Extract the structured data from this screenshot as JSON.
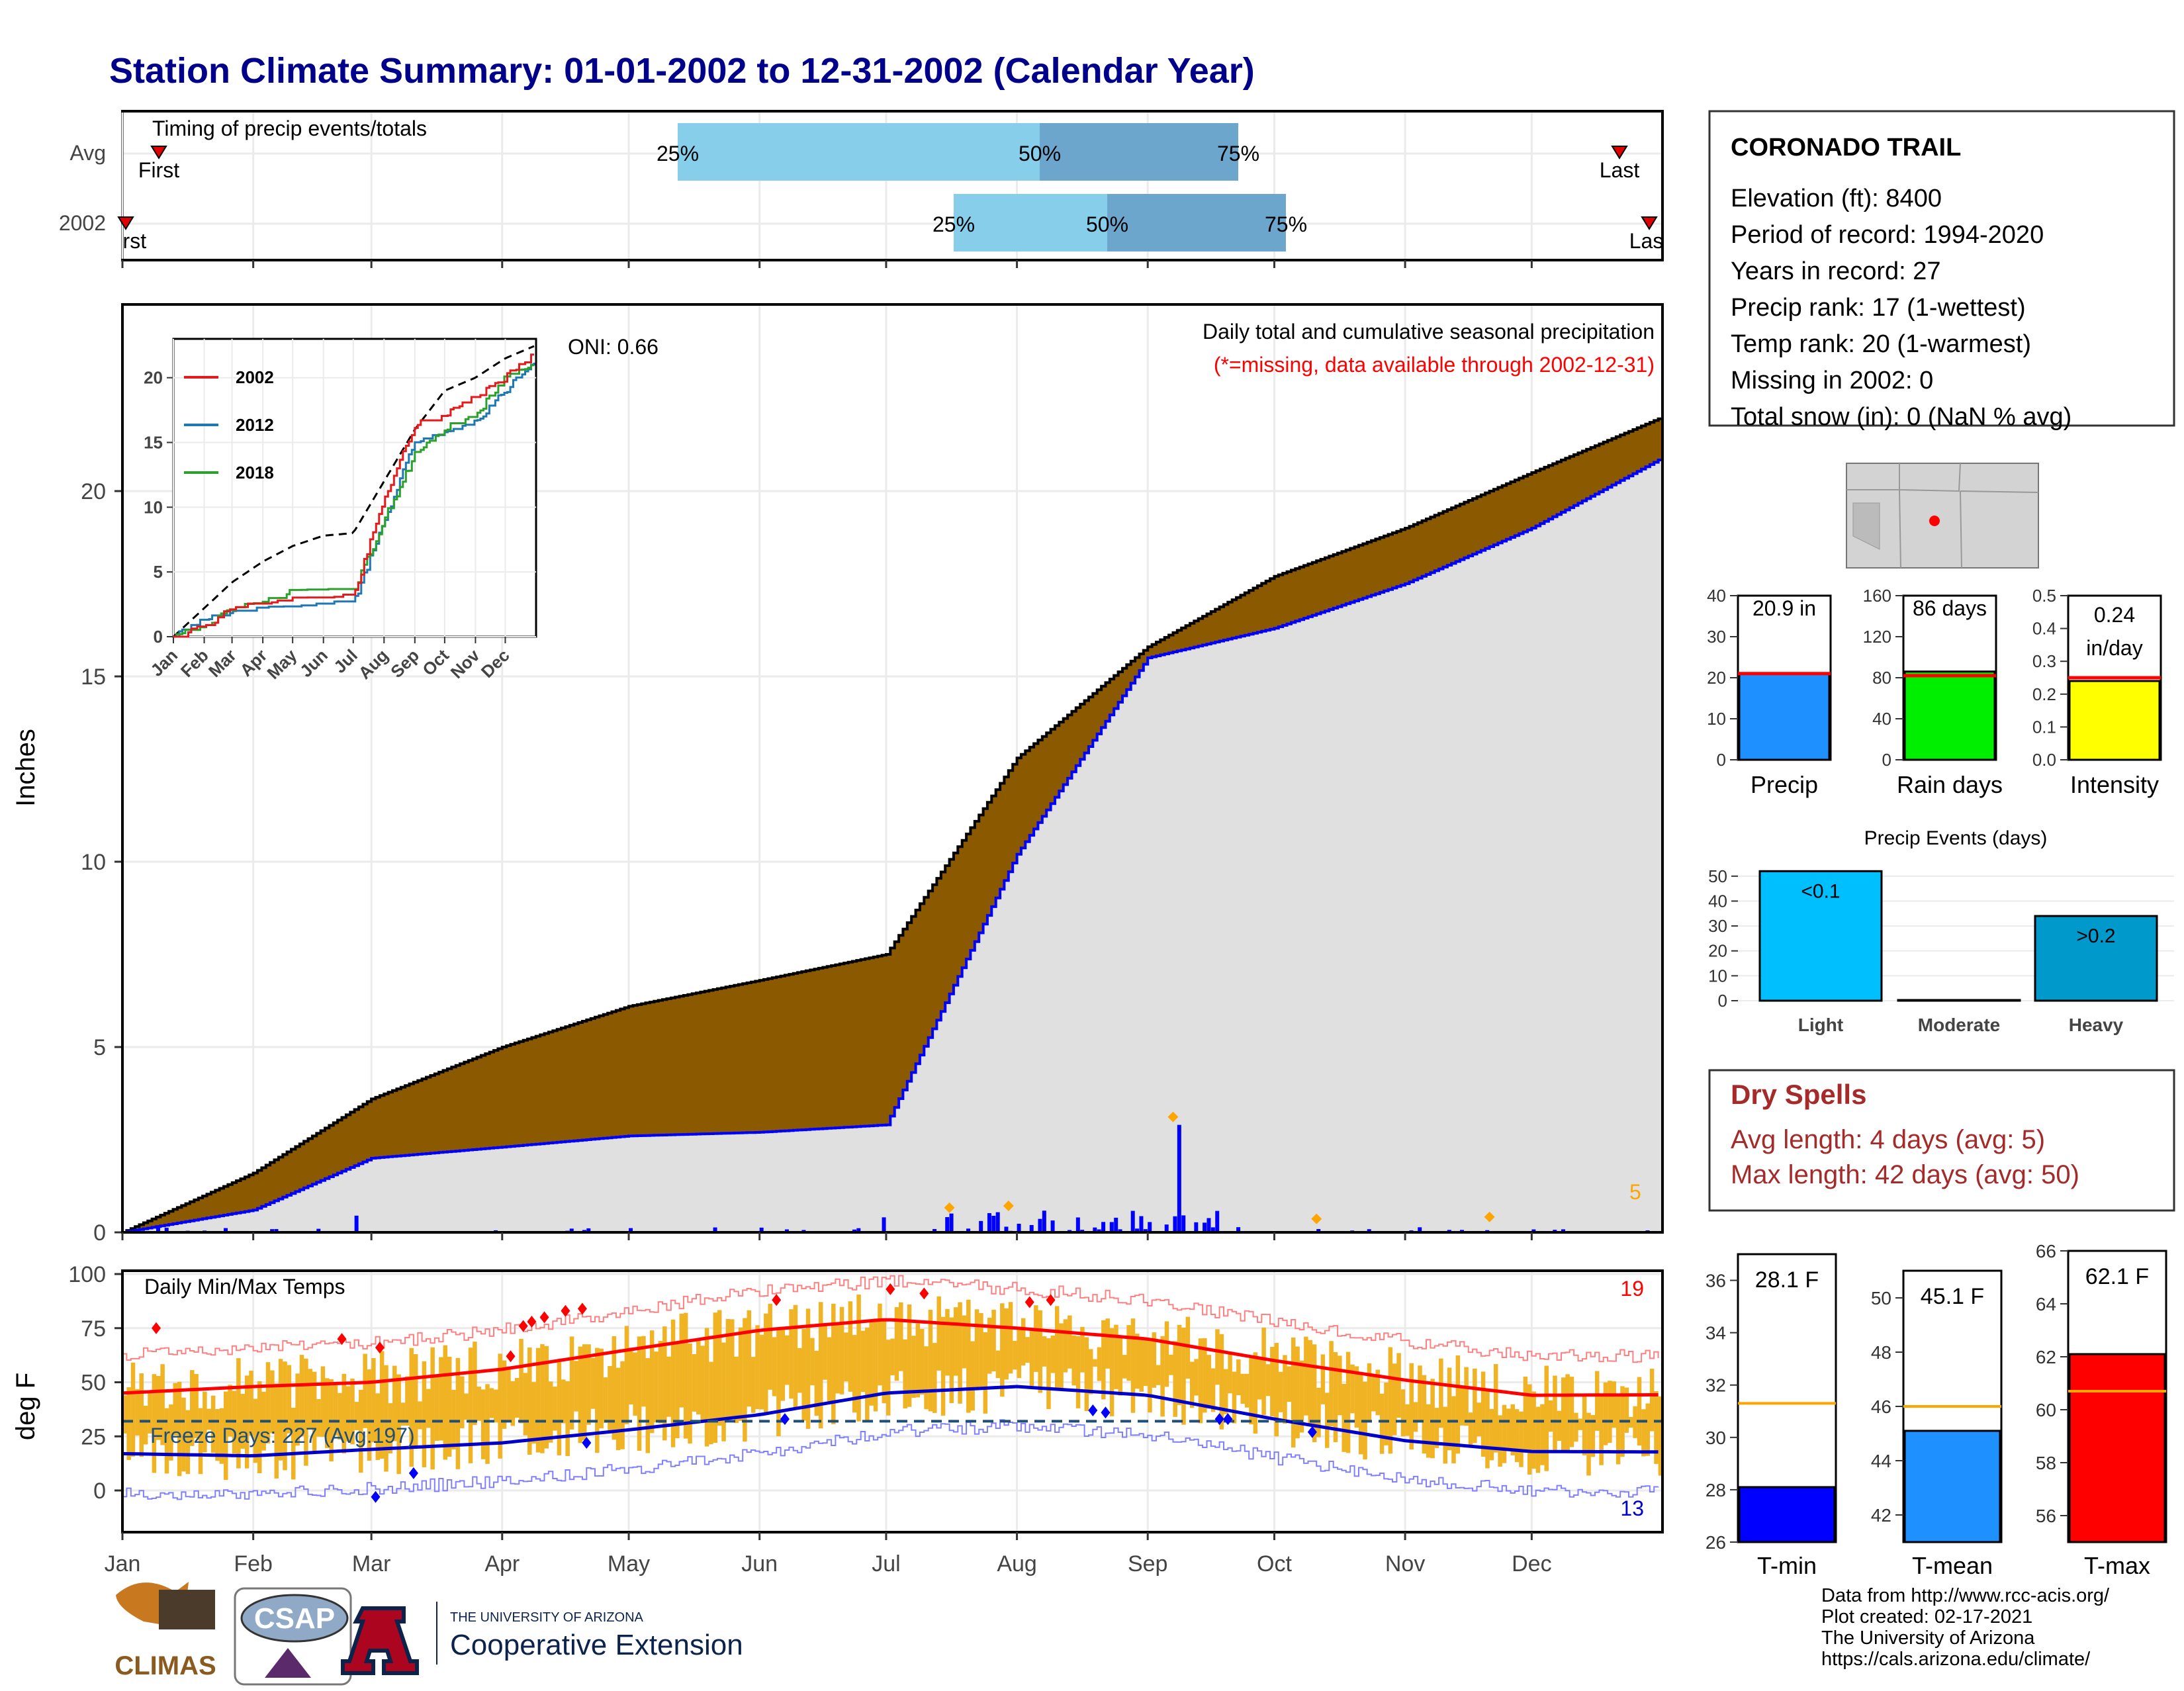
{
  "title": "Station Climate Summary: 01-01-2002 to 12-31-2002 (Calendar Year)",
  "timing": {
    "label": "Timing of precip events/totals",
    "rows": [
      {
        "name": "Avg",
        "first_label": "First",
        "last_label": "Last",
        "p25": "25%",
        "p50": "50%",
        "p75": "75%"
      },
      {
        "name": "2002",
        "first_label": "First",
        "last_label": "Last",
        "p25": "25%",
        "p50": "50%",
        "p75": "75%"
      }
    ]
  },
  "station": {
    "name": "CORONADO TRAIL",
    "lines": [
      "Elevation (ft): 8400",
      "Period of record: 1994-2020",
      "Years in record: 27",
      "Precip rank: 17 (1-wettest)",
      "Temp rank: 20 (1-warmest)",
      "Missing in 2002: 0",
      "Total snow (in): 0 (NaN % avg)"
    ]
  },
  "main_chart": {
    "ylabel": "Inches",
    "yticks": [
      "0",
      "5",
      "10",
      "15",
      "20"
    ],
    "caption1": "Daily total and cumulative seasonal precipitation",
    "caption2": "(*=missing, data available through 2002-12-31)",
    "oni": "ONI: 0.66",
    "count_label": "5"
  },
  "inset": {
    "yticks": [
      "0",
      "5",
      "10",
      "15",
      "20"
    ],
    "xticks": [
      "Jan",
      "Feb",
      "Mar",
      "Apr",
      "May",
      "Jun",
      "Jul",
      "Aug",
      "Sep",
      "Oct",
      "Nov",
      "Dec"
    ],
    "legend": [
      "2002",
      "2012",
      "2018"
    ]
  },
  "temp_chart": {
    "ylabel": "deg F",
    "title": "Daily Min/Max Temps",
    "freeze": "Freeze Days: 227 (Avg:197)",
    "yticks": [
      "0",
      "25",
      "50",
      "75",
      "100"
    ],
    "count_top": "19",
    "count_bottom": "13"
  },
  "months": [
    "Jan",
    "Feb",
    "Mar",
    "Apr",
    "May",
    "Jun",
    "Jul",
    "Aug",
    "Sep",
    "Oct",
    "Nov",
    "Dec"
  ],
  "summary_bars": [
    {
      "label": "Precip",
      "value_text": "20.9 in",
      "value": 20.9,
      "avg": 21,
      "max": 40,
      "yticks": [
        "0",
        "10",
        "20",
        "30",
        "40"
      ],
      "color": "#1e90ff"
    },
    {
      "label": "Rain days",
      "value_text": "86 days",
      "value": 86,
      "avg": 82,
      "max": 160,
      "yticks": [
        "0",
        "40",
        "80",
        "120",
        "160"
      ],
      "color": "#00ee00"
    },
    {
      "label": "Intensity",
      "value_text_1": "0.24",
      "value_text_2": "in/day",
      "value": 0.24,
      "avg": 0.25,
      "max": 0.5,
      "yticks": [
        "0.0",
        "0.1",
        "0.2",
        "0.3",
        "0.4",
        "0.5"
      ],
      "color": "#ffff00"
    }
  ],
  "events": {
    "title": "Precip Events (days)",
    "yticks": [
      "0",
      "10",
      "20",
      "30",
      "40",
      "50"
    ],
    "categories": [
      "Light",
      "Moderate",
      "Heavy"
    ],
    "values": [
      52,
      0,
      34
    ],
    "labels": [
      "<0.1",
      "",
      ">0.2"
    ]
  },
  "dry_spells": {
    "title": "Dry Spells",
    "line1": "Avg length: 4 days (avg: 5)",
    "line2": "Max length: 42 days (avg: 50)"
  },
  "temp_bars": [
    {
      "label": "T-min",
      "value_text": "28.1 F",
      "value": 28.1,
      "avg": 31.3,
      "min": 26,
      "max": 37,
      "yticks": [
        "26",
        "28",
        "30",
        "32",
        "34",
        "36"
      ],
      "color": "#0000ff"
    },
    {
      "label": "T-mean",
      "value_text": "45.1 F",
      "value": 45.1,
      "avg": 46.0,
      "min": 41,
      "max": 51,
      "yticks": [
        "42",
        "44",
        "46",
        "48",
        "50"
      ],
      "color": "#1e90ff"
    },
    {
      "label": "T-max",
      "value_text": "62.1 F",
      "value": 62.1,
      "avg": 60.7,
      "min": 55,
      "max": 66,
      "yticks": [
        "56",
        "58",
        "60",
        "62",
        "64",
        "66"
      ],
      "color": "#ff0000"
    }
  ],
  "footer": {
    "lines": [
      "Data from http://www.rcc-acis.org/",
      "Plot created: 02-17-2021",
      "The University of Arizona",
      "https://cals.arizona.edu/climate/"
    ]
  },
  "logos": {
    "climas": "CLIMAS",
    "csap": "CSAP",
    "ua_small": "THE UNIVERSITY OF ARIZONA",
    "coop": "Cooperative Extension"
  },
  "chart_data": [
    {
      "type": "area",
      "ylabel": "Inches",
      "ylim": [
        0,
        22.5
      ],
      "cumulative_avg": {
        "months": [
          "Jan",
          "Feb",
          "Mar",
          "Apr",
          "May",
          "Jun",
          "Jul",
          "Aug",
          "Sep",
          "Oct",
          "Nov",
          "Dec",
          "end"
        ],
        "values": [
          0,
          1.6,
          3.6,
          5.0,
          6.1,
          6.8,
          7.5,
          12.8,
          15.8,
          17.7,
          19.0,
          20.5,
          22.0
        ]
      },
      "cumulative_2002": {
        "months": [
          "Jan",
          "Feb",
          "Mar",
          "Apr",
          "May",
          "Jun",
          "Jul",
          "Aug",
          "Sep",
          "Oct",
          "Nov",
          "Dec",
          "end"
        ],
        "values": [
          0,
          0.6,
          2.0,
          2.3,
          2.6,
          2.7,
          2.9,
          10.2,
          15.5,
          16.3,
          17.5,
          19.0,
          20.9
        ]
      },
      "daily_precip_max": 2.9
    },
    {
      "type": "line",
      "ylabel": "deg F",
      "ylim": [
        -25,
        100
      ],
      "smoothed_avg_max": {
        "months": [
          "Jan",
          "Feb",
          "Mar",
          "Apr",
          "May",
          "Jun",
          "Jul",
          "Aug",
          "Sep",
          "Oct",
          "Nov",
          "Dec"
        ],
        "values": [
          45,
          48,
          50,
          56,
          65,
          74,
          79,
          75,
          70,
          60,
          51,
          44
        ]
      },
      "smoothed_avg_min": {
        "months": [
          "Jan",
          "Feb",
          "Mar",
          "Apr",
          "May",
          "Jun",
          "Jul",
          "Aug",
          "Sep",
          "Oct",
          "Nov",
          "Dec"
        ],
        "values": [
          17,
          16,
          19,
          22,
          28,
          35,
          45,
          48,
          44,
          33,
          23,
          18
        ]
      },
      "freeze_line": 32
    }
  ]
}
